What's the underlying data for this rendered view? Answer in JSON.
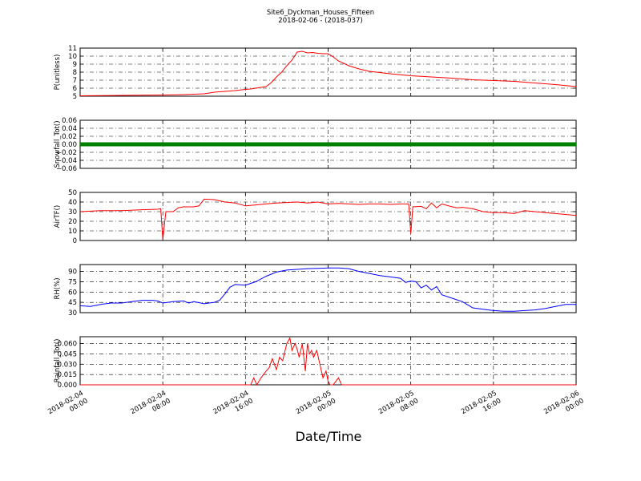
{
  "title": "Site6_Dyckman_Houses_Fifteen",
  "subtitle": "2018-02-06 - (2018-037)",
  "xlabel": "Date/Time",
  "x_ticks": [
    "2018-02-04\n00:00",
    "2018-02-04\n08:00",
    "2018-02-04\n16:00",
    "2018-02-05\n00:00",
    "2018-02-05\n08:00",
    "2018-02-05\n16:00",
    "2018-02-06\n00:00"
  ],
  "x_range_hours": [
    0,
    48
  ],
  "colors": {
    "red": "#ff0000",
    "green": "#008000",
    "blue": "#0000ff"
  },
  "chart_data": [
    {
      "type": "line",
      "ylabel": "P(unitless)",
      "ylim": [
        5,
        11
      ],
      "yticks": [
        "5",
        "6",
        "7",
        "8",
        "9",
        "10",
        "11"
      ],
      "grid": true,
      "series": [
        {
          "color": "#ff0000",
          "x": [
            0,
            2,
            4,
            6,
            8,
            10,
            12,
            13,
            14,
            15,
            16,
            16.5,
            17,
            18,
            18.5,
            19,
            19.5,
            20,
            20.5,
            21,
            21.5,
            22,
            22.5,
            23,
            23.5,
            24,
            24.5,
            25,
            26,
            27,
            28,
            30,
            32,
            34,
            36,
            38,
            40,
            42,
            44,
            46,
            48
          ],
          "y": [
            5.05,
            5.07,
            5.1,
            5.12,
            5.15,
            5.2,
            5.3,
            5.5,
            5.6,
            5.7,
            5.85,
            5.9,
            6.0,
            6.2,
            6.7,
            7.4,
            8.0,
            8.8,
            9.5,
            10.5,
            10.6,
            10.4,
            10.45,
            10.35,
            10.3,
            10.3,
            9.9,
            9.4,
            8.8,
            8.4,
            8.1,
            7.8,
            7.55,
            7.4,
            7.25,
            7.05,
            6.95,
            6.85,
            6.65,
            6.45,
            6.2
          ]
        }
      ]
    },
    {
      "type": "scatter",
      "ylabel": "Snowfall_Tot()",
      "ylim": [
        -0.06,
        0.06
      ],
      "yticks": [
        "−0.06",
        "−0.04",
        "−0.02",
        "0.00",
        "0.02",
        "0.04",
        "0.06"
      ],
      "grid": true,
      "series": [
        {
          "color": "#008000",
          "x": [
            0,
            48
          ],
          "y": [
            0.0,
            0.0
          ],
          "note_constant": true
        }
      ]
    },
    {
      "type": "line",
      "ylabel": "AirTF()",
      "ylim": [
        0,
        50
      ],
      "yticks": [
        "0",
        "10",
        "20",
        "30",
        "40",
        "50"
      ],
      "grid": true,
      "series": [
        {
          "color": "#ff0000",
          "x": [
            0,
            2,
            4,
            6,
            7.5,
            7.8,
            8.0,
            8.3,
            9,
            9.5,
            10,
            11,
            11.5,
            12,
            13,
            14,
            15,
            16,
            17,
            18,
            19,
            20,
            21,
            22,
            23,
            24,
            25,
            26,
            27,
            28,
            29,
            30,
            31,
            31.8,
            32.0,
            32.2,
            33,
            33.5,
            34,
            34.5,
            35,
            36,
            36.5,
            37,
            38,
            39,
            40,
            41,
            42,
            43,
            44,
            46,
            48
          ],
          "y": [
            30,
            31,
            31,
            32,
            32.5,
            33,
            1,
            30,
            30,
            34,
            35,
            35,
            36,
            43,
            42.5,
            40,
            39,
            36,
            37,
            38,
            39,
            39.5,
            40,
            39,
            40,
            38,
            38.5,
            38,
            37.5,
            38,
            38,
            37.5,
            38,
            38,
            7,
            35,
            35.5,
            33,
            39,
            34,
            38,
            35,
            34,
            34.5,
            33,
            30,
            29,
            29,
            28,
            31,
            30,
            28,
            26
          ]
        }
      ]
    },
    {
      "type": "line",
      "ylabel": "RH(%)",
      "ylim": [
        30,
        100
      ],
      "yticks": [
        "30",
        "45",
        "60",
        "75",
        "90"
      ],
      "grid": true,
      "series": [
        {
          "color": "#0000ff",
          "x": [
            0,
            1,
            2,
            3,
            4,
            5,
            6,
            7,
            7.5,
            8,
            9,
            10,
            10.5,
            11,
            12,
            13,
            13.5,
            14,
            14.5,
            15,
            16,
            17,
            18,
            19,
            20,
            21,
            22,
            23,
            24,
            25,
            26,
            27,
            28,
            29,
            30,
            31,
            31.5,
            32,
            32.5,
            33,
            33.5,
            34,
            34.5,
            35,
            36,
            37,
            38,
            39,
            40,
            41,
            42,
            43,
            44,
            45,
            46,
            47,
            48
          ],
          "y": [
            40,
            39,
            42,
            44,
            44,
            46,
            48,
            48,
            47,
            44,
            46,
            47,
            44,
            46,
            43,
            45,
            48,
            57,
            67,
            71,
            70,
            75,
            83,
            89,
            92,
            93,
            94,
            94.5,
            95,
            95,
            94,
            90,
            87,
            84,
            82,
            80,
            74,
            76,
            75,
            66,
            70,
            63,
            68,
            56,
            51,
            46,
            37,
            35,
            33,
            32,
            32,
            33,
            34,
            36,
            39,
            42,
            42
          ]
        }
      ]
    },
    {
      "type": "line",
      "ylabel": "Rainfall_Tot()",
      "ylim": [
        0,
        0.07
      ],
      "yticks": [
        "0.000",
        "0.015",
        "0.030",
        "0.045",
        "0.060"
      ],
      "grid": true,
      "series": [
        {
          "color": "#ff0000",
          "x": [
            0,
            16.5,
            16.8,
            17.1,
            17.5,
            18,
            18.3,
            18.6,
            19,
            19.3,
            19.6,
            20,
            20.3,
            20.5,
            20.8,
            21,
            21.2,
            21.5,
            21.8,
            22,
            22.2,
            22.4,
            22.6,
            22.9,
            23.2,
            23.5,
            23.8,
            24,
            24.2,
            24.5,
            25,
            25.3,
            25.6,
            26,
            48
          ],
          "y": [
            0,
            0,
            0.01,
            0,
            0.01,
            0.02,
            0.025,
            0.038,
            0.022,
            0.04,
            0.035,
            0.06,
            0.068,
            0.05,
            0.06,
            0.052,
            0.04,
            0.06,
            0.02,
            0.06,
            0.045,
            0.05,
            0.04,
            0.05,
            0.03,
            0.01,
            0.02,
            0.005,
            0,
            0,
            0.01,
            0,
            0,
            0,
            0
          ]
        }
      ]
    }
  ]
}
